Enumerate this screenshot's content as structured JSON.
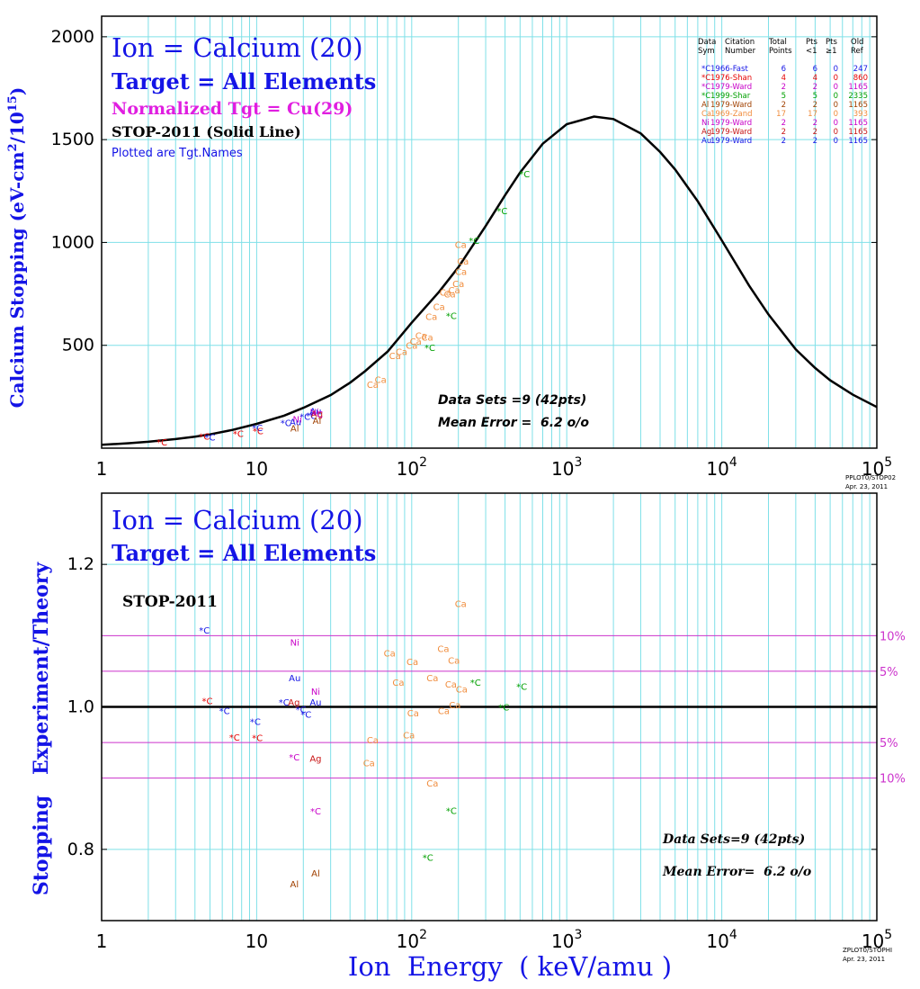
{
  "colors": {
    "grid": "#7fe0e8",
    "axis": "#000000",
    "title_blue": "#1414e6",
    "magenta": "#e01ee0",
    "pink_ref": "#cc33cc"
  },
  "chart_data": [
    {
      "type": "scatter",
      "panel": "stopping",
      "xscale": "log",
      "xlim": [
        1,
        100000
      ],
      "ylim": [
        0,
        2100
      ],
      "grid": true,
      "xticks": [
        "1",
        "10",
        "10",
        "10",
        "10",
        "10"
      ],
      "xtick_exponents": [
        "",
        "",
        "2",
        "3",
        "4",
        "5"
      ],
      "yticks": [
        "500",
        "1000",
        "1500",
        "2000"
      ],
      "ytick_values": [
        500,
        1000,
        1500,
        2000
      ],
      "ylabel": "Calcium Stopping (eV-cm",
      "ylabel_sup1": "2",
      "ylabel_mid": "/10",
      "ylabel_sup2": "15",
      "ylabel_end": ")",
      "title_lines": [
        "Ion = Calcium (20)",
        "Target = All Elements",
        "Normalized Tgt = Cu(29)",
        "STOP-2011 (Solid Line)",
        "Plotted are Tgt.Names"
      ],
      "stats": [
        "Data Sets =9 (42pts)",
        "Mean Error =  6.2 o/o"
      ],
      "stamp": [
        "PPLOT0/STOP02",
        "Apr. 23, 2011"
      ],
      "legend": {
        "position": "top-right",
        "header": [
          [
            "Data",
            "Citation",
            "Total",
            "Pts",
            "Pts",
            "Old"
          ],
          [
            "Sym",
            "Number",
            "Points",
            "<1",
            "≥1",
            "Ref"
          ]
        ],
        "rows": [
          [
            "*C",
            "1966-Fast",
            "6",
            "6",
            "0",
            "247"
          ],
          [
            "*C",
            "1976-Shan",
            "4",
            "4",
            "0",
            "860"
          ],
          [
            "*C",
            "1979-Ward",
            "2",
            "2",
            "0",
            "1165"
          ],
          [
            "*C",
            "1999-Shar",
            "5",
            "5",
            "0",
            "2335"
          ],
          [
            "Al",
            "1979-Ward",
            "2",
            "2",
            "0",
            "1165"
          ],
          [
            "Ca",
            "1969-Zand",
            "17",
            "17",
            "0",
            "393"
          ],
          [
            "Ni",
            "1979-Ward",
            "2",
            "2",
            "0",
            "1165"
          ],
          [
            "Ag",
            "1979-Ward",
            "2",
            "2",
            "0",
            "1165"
          ],
          [
            "Au",
            "1979-Ward",
            "2",
            "2",
            "0",
            "1165"
          ]
        ],
        "row_colors": [
          "#1414e6",
          "#e60000",
          "#c800c8",
          "#00a000",
          "#a04000",
          "#f08c3c",
          "#c800c8",
          "#c81414",
          "#1414e6"
        ]
      },
      "curve": {
        "name": "STOP-2011",
        "x": [
          1,
          1.5,
          2,
          3,
          4,
          5,
          7,
          10,
          15,
          20,
          30,
          40,
          50,
          70,
          100,
          150,
          200,
          300,
          400,
          500,
          700,
          1000,
          1500,
          2000,
          3000,
          4000,
          5000,
          7000,
          10000,
          15000,
          20000,
          30000,
          40000,
          50000,
          70000,
          100000
        ],
        "y": [
          16,
          24,
          31,
          44,
          56,
          67,
          89,
          118,
          158,
          196,
          258,
          318,
          374,
          470,
          610,
          760,
          880,
          1080,
          1230,
          1340,
          1480,
          1575,
          1612,
          1600,
          1530,
          1440,
          1355,
          1200,
          1010,
          790,
          650,
          480,
          390,
          330,
          260,
          200
        ]
      },
      "points": [
        {
          "label": "*C",
          "color": "#e60000",
          "x": 2.45,
          "y": 30
        },
        {
          "label": "*C",
          "color": "#e60000",
          "x": 4.6,
          "y": 58
        },
        {
          "label": "*C",
          "color": "#1414e6",
          "x": 5.0,
          "y": 55
        },
        {
          "label": "*C",
          "color": "#e60000",
          "x": 7.6,
          "y": 73
        },
        {
          "label": "*C",
          "color": "#1414e6",
          "x": 10.1,
          "y": 100
        },
        {
          "label": "*C",
          "color": "#e60000",
          "x": 10.2,
          "y": 86
        },
        {
          "label": "*C",
          "color": "#1414e6",
          "x": 15.4,
          "y": 125
        },
        {
          "label": "Ni",
          "color": "#c800c8",
          "x": 18.3,
          "y": 143
        },
        {
          "label": "Au",
          "color": "#1414e6",
          "x": 17.8,
          "y": 128
        },
        {
          "label": "Al",
          "color": "#a04000",
          "x": 17.6,
          "y": 98
        },
        {
          "label": "*C",
          "color": "#1414e6",
          "x": 20.5,
          "y": 155
        },
        {
          "label": "Ni",
          "color": "#c800c8",
          "x": 23.6,
          "y": 177
        },
        {
          "label": "Au",
          "color": "#1414e6",
          "x": 24.0,
          "y": 182
        },
        {
          "label": "*C",
          "color": "#1414e6",
          "x": 22.5,
          "y": 160
        },
        {
          "label": "Ag",
          "color": "#c81414",
          "x": 24.5,
          "y": 168
        },
        {
          "label": "*C",
          "color": "#c800c8",
          "x": 24.7,
          "y": 166
        },
        {
          "label": "Al",
          "color": "#a04000",
          "x": 24.5,
          "y": 135
        },
        {
          "label": "Ca",
          "color": "#f08c3c",
          "x": 56,
          "y": 310
        },
        {
          "label": "Ca",
          "color": "#f08c3c",
          "x": 63,
          "y": 335
        },
        {
          "label": "Ca",
          "color": "#f08c3c",
          "x": 78,
          "y": 450
        },
        {
          "label": "Ca",
          "color": "#f08c3c",
          "x": 86,
          "y": 470
        },
        {
          "label": "Ca",
          "color": "#f08c3c",
          "x": 100,
          "y": 500
        },
        {
          "label": "Ca",
          "color": "#f08c3c",
          "x": 106,
          "y": 520
        },
        {
          "label": "Ca",
          "color": "#f08c3c",
          "x": 115,
          "y": 550
        },
        {
          "label": "Ca",
          "color": "#f08c3c",
          "x": 126,
          "y": 540
        },
        {
          "label": "Ca",
          "color": "#f08c3c",
          "x": 134,
          "y": 640
        },
        {
          "label": "Ca",
          "color": "#f08c3c",
          "x": 150,
          "y": 690
        },
        {
          "label": "Ca",
          "color": "#f08c3c",
          "x": 165,
          "y": 760
        },
        {
          "label": "Ca",
          "color": "#f08c3c",
          "x": 176,
          "y": 750
        },
        {
          "label": "Ca",
          "color": "#f08c3c",
          "x": 188,
          "y": 770
        },
        {
          "label": "Ca",
          "color": "#f08c3c",
          "x": 200,
          "y": 800
        },
        {
          "label": "Ca",
          "color": "#f08c3c",
          "x": 208,
          "y": 860
        },
        {
          "label": "Ca",
          "color": "#f08c3c",
          "x": 214,
          "y": 910
        },
        {
          "label": "Ca",
          "color": "#f08c3c",
          "x": 207,
          "y": 990
        },
        {
          "label": "*C",
          "color": "#00a000",
          "x": 131,
          "y": 490
        },
        {
          "label": "*C",
          "color": "#00a000",
          "x": 180,
          "y": 645
        },
        {
          "label": "*C",
          "color": "#00a000",
          "x": 253,
          "y": 1010
        },
        {
          "label": "*C",
          "color": "#00a000",
          "x": 383,
          "y": 1155
        },
        {
          "label": "*C",
          "color": "#00a000",
          "x": 534,
          "y": 1335
        }
      ]
    },
    {
      "type": "scatter",
      "panel": "ratio",
      "xscale": "log",
      "xlim": [
        1,
        100000
      ],
      "ylim": [
        0.7,
        1.3
      ],
      "grid": true,
      "xticks": [
        "1",
        "10",
        "10",
        "10",
        "10",
        "10"
      ],
      "xtick_exponents": [
        "",
        "",
        "2",
        "3",
        "4",
        "5"
      ],
      "yticks": [
        "0.8",
        "1.0",
        "1.2"
      ],
      "ytick_values": [
        0.8,
        1.0,
        1.2
      ],
      "ylabel": "Stopping   Experiment/Theory",
      "xlabel": "Ion  Energy  ( keV/amu )",
      "title_lines": [
        "Ion = Calcium (20)",
        "Target = All Elements"
      ],
      "subtitle": "STOP-2011",
      "stats": [
        "Data Sets=9 (42pts)",
        "Mean Error=  6.2 o/o"
      ],
      "stamp": [
        "ZPLOT0/STOPHI",
        "Apr. 23, 2011"
      ],
      "ref_lines": [
        {
          "y": 1.1,
          "label": "10%"
        },
        {
          "y": 1.05,
          "label": "5%"
        },
        {
          "y": 0.95,
          "label": "5%"
        },
        {
          "y": 0.9,
          "label": "10%"
        }
      ],
      "unity_line": 1.0,
      "points": [
        {
          "label": "*C",
          "color": "#1414e6",
          "x": 4.6,
          "y": 1.108
        },
        {
          "label": "*C",
          "color": "#e60000",
          "x": 4.8,
          "y": 1.009
        },
        {
          "label": "*C",
          "color": "#1414e6",
          "x": 6.2,
          "y": 0.995
        },
        {
          "label": "*C",
          "color": "#1414e6",
          "x": 9.8,
          "y": 0.98
        },
        {
          "label": "*C",
          "color": "#e60000",
          "x": 7.2,
          "y": 0.958
        },
        {
          "label": "*C",
          "color": "#e60000",
          "x": 10.1,
          "y": 0.957
        },
        {
          "label": "Ni",
          "color": "#c800c8",
          "x": 17.6,
          "y": 1.091
        },
        {
          "label": "Au",
          "color": "#1414e6",
          "x": 17.6,
          "y": 1.041
        },
        {
          "label": "*C",
          "color": "#1414e6",
          "x": 15.0,
          "y": 1.007
        },
        {
          "label": "Ag",
          "color": "#c81414",
          "x": 17.4,
          "y": 1.007
        },
        {
          "label": "*C",
          "color": "#1414e6",
          "x": 19.3,
          "y": 0.997
        },
        {
          "label": "*C",
          "color": "#1414e6",
          "x": 20.8,
          "y": 0.99
        },
        {
          "label": "Ni",
          "color": "#c800c8",
          "x": 24.0,
          "y": 1.022
        },
        {
          "label": "Au",
          "color": "#1414e6",
          "x": 24.0,
          "y": 1.007
        },
        {
          "label": "*C",
          "color": "#c800c8",
          "x": 17.5,
          "y": 0.93
        },
        {
          "label": "Ag",
          "color": "#c81414",
          "x": 24.0,
          "y": 0.928
        },
        {
          "label": "*C",
          "color": "#c800c8",
          "x": 24.0,
          "y": 0.854
        },
        {
          "label": "Al",
          "color": "#a04000",
          "x": 17.5,
          "y": 0.752
        },
        {
          "label": "Al",
          "color": "#a04000",
          "x": 24.0,
          "y": 0.767
        },
        {
          "label": "Ca",
          "color": "#f08c3c",
          "x": 207,
          "y": 1.145
        },
        {
          "label": "Ca",
          "color": "#f08c3c",
          "x": 72,
          "y": 1.076
        },
        {
          "label": "Ca",
          "color": "#f08c3c",
          "x": 101,
          "y": 1.064
        },
        {
          "label": "Ca",
          "color": "#f08c3c",
          "x": 160,
          "y": 1.082
        },
        {
          "label": "Ca",
          "color": "#f08c3c",
          "x": 187,
          "y": 1.066
        },
        {
          "label": "Ca",
          "color": "#f08c3c",
          "x": 82,
          "y": 1.035
        },
        {
          "label": "Ca",
          "color": "#f08c3c",
          "x": 136,
          "y": 1.041
        },
        {
          "label": "Ca",
          "color": "#f08c3c",
          "x": 179,
          "y": 1.032
        },
        {
          "label": "Ca",
          "color": "#f08c3c",
          "x": 210,
          "y": 1.025
        },
        {
          "label": "Ca",
          "color": "#f08c3c",
          "x": 190,
          "y": 1.003
        },
        {
          "label": "Ca",
          "color": "#f08c3c",
          "x": 102,
          "y": 0.992
        },
        {
          "label": "Ca",
          "color": "#f08c3c",
          "x": 161,
          "y": 0.995
        },
        {
          "label": "Ca",
          "color": "#f08c3c",
          "x": 96,
          "y": 0.961
        },
        {
          "label": "Ca",
          "color": "#f08c3c",
          "x": 56,
          "y": 0.954
        },
        {
          "label": "Ca",
          "color": "#f08c3c",
          "x": 53,
          "y": 0.922
        },
        {
          "label": "Ca",
          "color": "#f08c3c",
          "x": 136,
          "y": 0.893
        },
        {
          "label": "*C",
          "color": "#00a000",
          "x": 258,
          "y": 1.035
        },
        {
          "label": "*C",
          "color": "#00a000",
          "x": 512,
          "y": 1.029
        },
        {
          "label": "*C",
          "color": "#00a000",
          "x": 393,
          "y": 1.0
        },
        {
          "label": "*C",
          "color": "#00a000",
          "x": 180,
          "y": 0.855
        },
        {
          "label": "*C",
          "color": "#00a000",
          "x": 127,
          "y": 0.789
        }
      ]
    }
  ]
}
